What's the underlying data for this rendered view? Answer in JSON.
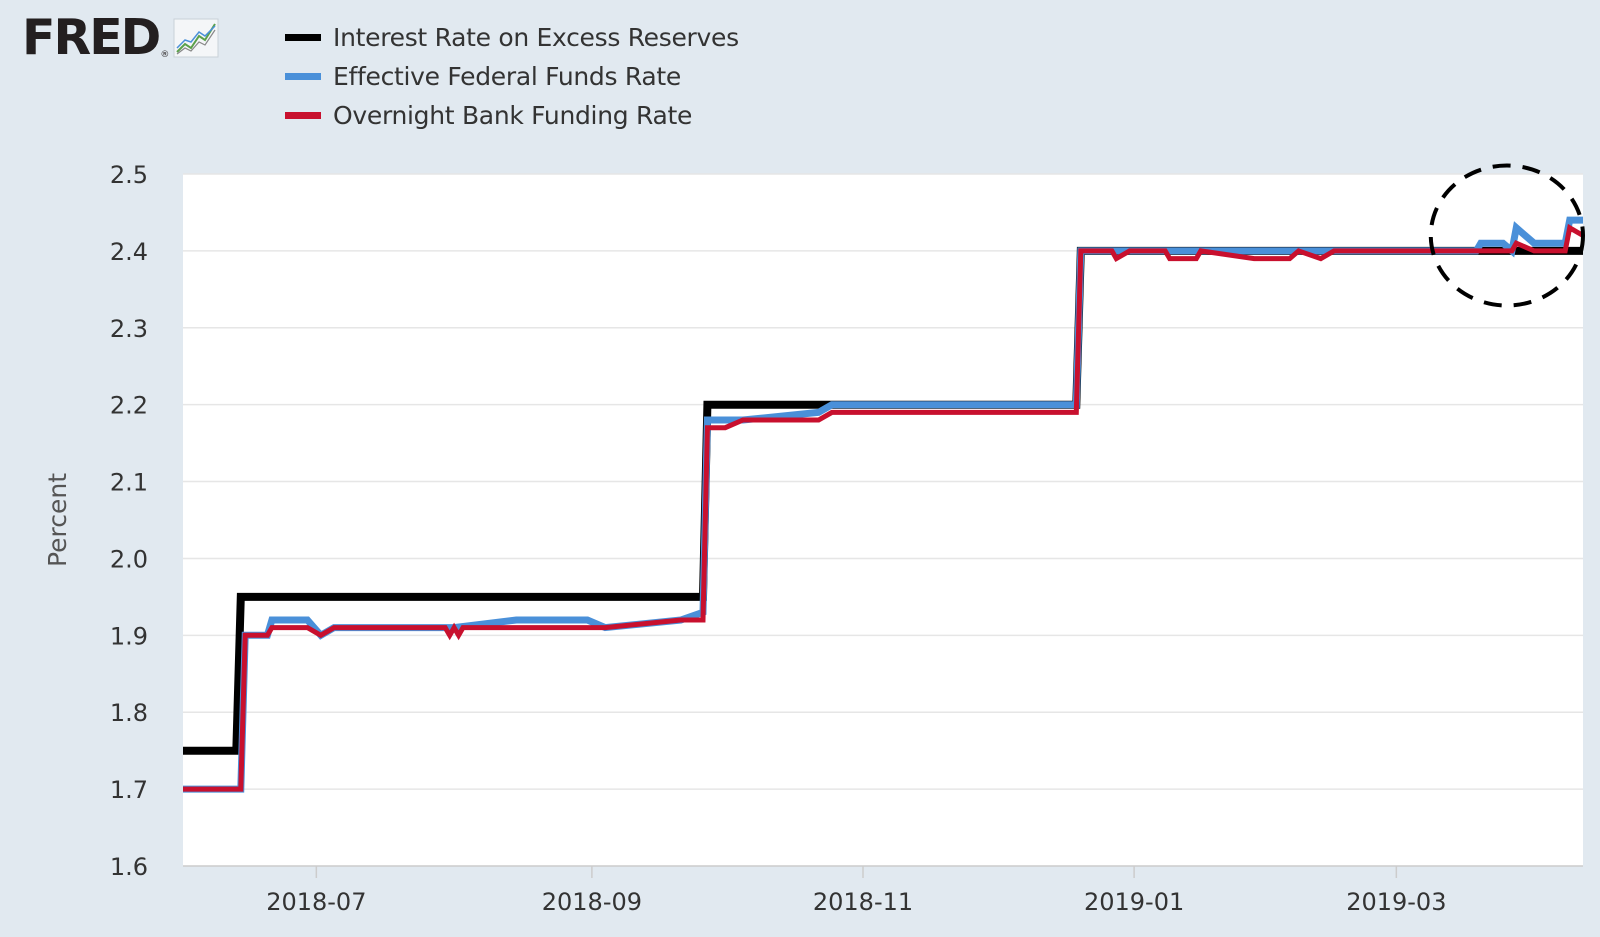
{
  "logo": {
    "text": "FRED",
    "reg": "®",
    "icon": "fred-chart-icon"
  },
  "chart_data": {
    "type": "line",
    "title": "",
    "xlabel": "",
    "ylabel": "Percent",
    "ylim": [
      1.6,
      2.5
    ],
    "yticks": [
      "2.5",
      "2.4",
      "2.3",
      "2.2",
      "2.1",
      "2.0",
      "1.9",
      "1.8",
      "1.7",
      "1.6"
    ],
    "xlim": [
      "2018-06-01",
      "2019-04-12"
    ],
    "xticks": [
      {
        "date": "2018-07-01",
        "label": "2018-07"
      },
      {
        "date": "2018-09-01",
        "label": "2018-09"
      },
      {
        "date": "2018-11-01",
        "label": "2018-11"
      },
      {
        "date": "2019-01-01",
        "label": "2019-01"
      },
      {
        "date": "2019-03-01",
        "label": "2019-03"
      }
    ],
    "grid": true,
    "legend_position": "top",
    "series": [
      {
        "name": "Interest Rate on Excess Reserves",
        "color": "#000000",
        "points": [
          [
            "2018-06-01",
            1.75
          ],
          [
            "2018-06-13",
            1.75
          ],
          [
            "2018-06-14",
            1.95
          ],
          [
            "2018-09-26",
            1.95
          ],
          [
            "2018-09-27",
            2.2
          ],
          [
            "2018-12-19",
            2.2
          ],
          [
            "2018-12-20",
            2.4
          ],
          [
            "2019-04-12",
            2.4
          ]
        ]
      },
      {
        "name": "Effective Federal Funds Rate",
        "color": "#4a90d9",
        "points": [
          [
            "2018-06-01",
            1.7
          ],
          [
            "2018-06-14",
            1.7
          ],
          [
            "2018-06-15",
            1.9
          ],
          [
            "2018-06-20",
            1.9
          ],
          [
            "2018-06-21",
            1.92
          ],
          [
            "2018-06-29",
            1.92
          ],
          [
            "2018-07-02",
            1.9
          ],
          [
            "2018-07-05",
            1.91
          ],
          [
            "2018-07-30",
            1.91
          ],
          [
            "2018-07-31",
            1.91
          ],
          [
            "2018-08-01",
            1.91
          ],
          [
            "2018-08-15",
            1.92
          ],
          [
            "2018-08-31",
            1.92
          ],
          [
            "2018-09-04",
            1.91
          ],
          [
            "2018-09-21",
            1.92
          ],
          [
            "2018-09-26",
            1.93
          ],
          [
            "2018-09-27",
            2.18
          ],
          [
            "2018-10-01",
            2.18
          ],
          [
            "2018-10-05",
            2.18
          ],
          [
            "2018-10-22",
            2.19
          ],
          [
            "2018-10-25",
            2.2
          ],
          [
            "2018-11-30",
            2.2
          ],
          [
            "2018-12-19",
            2.2
          ],
          [
            "2018-12-20",
            2.4
          ],
          [
            "2018-12-31",
            2.4
          ],
          [
            "2019-01-15",
            2.4
          ],
          [
            "2019-02-28",
            2.4
          ],
          [
            "2019-03-19",
            2.4
          ],
          [
            "2019-03-20",
            2.41
          ],
          [
            "2019-03-25",
            2.41
          ],
          [
            "2019-03-27",
            2.4
          ],
          [
            "2019-03-28",
            2.43
          ],
          [
            "2019-04-01",
            2.41
          ],
          [
            "2019-04-08",
            2.41
          ],
          [
            "2019-04-09",
            2.44
          ],
          [
            "2019-04-12",
            2.44
          ]
        ]
      },
      {
        "name": "Overnight Bank Funding Rate",
        "color": "#c8102e",
        "points": [
          [
            "2018-06-01",
            1.7
          ],
          [
            "2018-06-14",
            1.7
          ],
          [
            "2018-06-15",
            1.9
          ],
          [
            "2018-06-20",
            1.9
          ],
          [
            "2018-06-21",
            1.91
          ],
          [
            "2018-06-29",
            1.91
          ],
          [
            "2018-07-02",
            1.9
          ],
          [
            "2018-07-05",
            1.91
          ],
          [
            "2018-07-30",
            1.91
          ],
          [
            "2018-07-31",
            1.9
          ],
          [
            "2018-08-01",
            1.91
          ],
          [
            "2018-08-02",
            1.9
          ],
          [
            "2018-08-03",
            1.91
          ],
          [
            "2018-08-31",
            1.91
          ],
          [
            "2018-09-04",
            1.91
          ],
          [
            "2018-09-21",
            1.92
          ],
          [
            "2018-09-26",
            1.92
          ],
          [
            "2018-09-27",
            2.17
          ],
          [
            "2018-10-01",
            2.17
          ],
          [
            "2018-10-05",
            2.18
          ],
          [
            "2018-10-22",
            2.18
          ],
          [
            "2018-10-25",
            2.19
          ],
          [
            "2018-11-30",
            2.19
          ],
          [
            "2018-12-19",
            2.19
          ],
          [
            "2018-12-20",
            2.4
          ],
          [
            "2018-12-27",
            2.4
          ],
          [
            "2018-12-28",
            2.39
          ],
          [
            "2018-12-31",
            2.4
          ],
          [
            "2019-01-08",
            2.4
          ],
          [
            "2019-01-09",
            2.39
          ],
          [
            "2019-01-15",
            2.39
          ],
          [
            "2019-01-16",
            2.4
          ],
          [
            "2019-01-28",
            2.39
          ],
          [
            "2019-02-05",
            2.39
          ],
          [
            "2019-02-07",
            2.4
          ],
          [
            "2019-02-12",
            2.39
          ],
          [
            "2019-02-15",
            2.4
          ],
          [
            "2019-03-27",
            2.4
          ],
          [
            "2019-03-28",
            2.41
          ],
          [
            "2019-04-01",
            2.4
          ],
          [
            "2019-04-08",
            2.4
          ],
          [
            "2019-04-09",
            2.43
          ],
          [
            "2019-04-12",
            2.42
          ]
        ]
      }
    ],
    "annotation": {
      "type": "dashed-ellipse",
      "around": "Effective Federal Funds Rate and Overnight Bank Funding Rate above Interest Rate on Excess Reserves",
      "x_range": [
        "2019-03-11",
        "2019-04-12"
      ],
      "y_center": 2.42
    }
  }
}
